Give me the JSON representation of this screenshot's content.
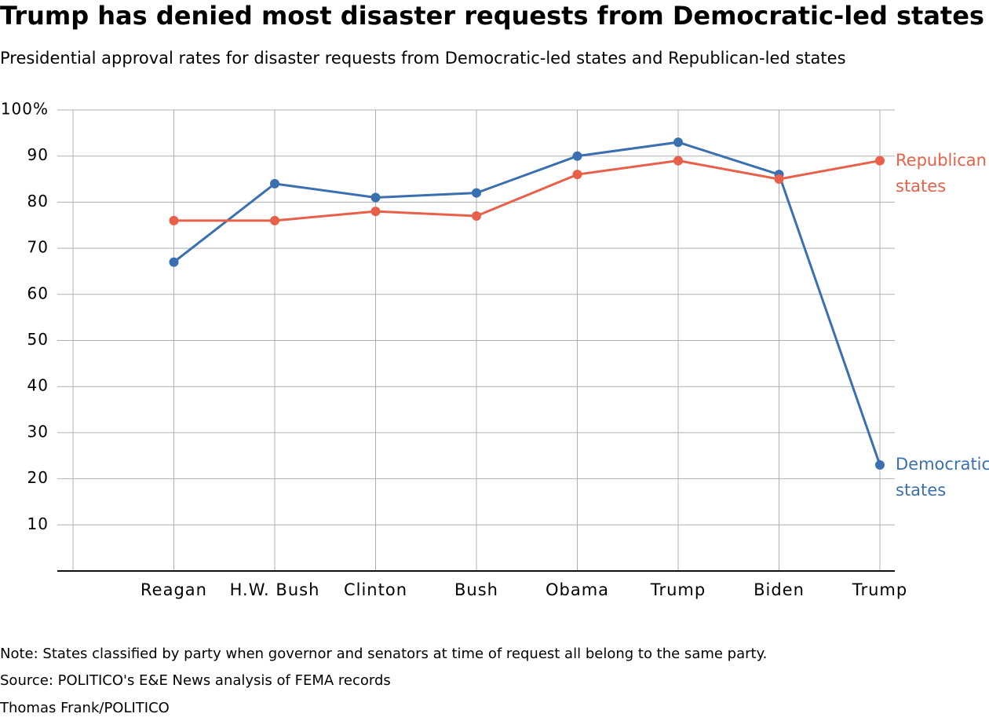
{
  "chart_data": {
    "type": "line",
    "title": "Trump has denied most disaster requests from Democratic-led states",
    "subtitle": "Presidential approval rates for disaster requests from Democratic-led states and Republican-led states",
    "categories": [
      null,
      "Reagan",
      "H.W. Bush",
      "Clinton",
      "Bush",
      "Obama",
      "Trump",
      "Biden",
      "Trump"
    ],
    "series": [
      {
        "name": "Democratic states",
        "color": "#3a6fb0",
        "values": [
          null,
          67,
          84,
          81,
          82,
          90,
          93,
          86,
          23
        ]
      },
      {
        "name": "Republican states",
        "color": "#e8604a",
        "values": [
          null,
          76,
          76,
          78,
          77,
          86,
          89,
          85,
          89
        ]
      }
    ],
    "ylim": [
      0,
      100
    ],
    "yticks": [
      10,
      20,
      30,
      40,
      50,
      60,
      70,
      80,
      90,
      {
        "value": 100,
        "label": "100%"
      }
    ],
    "grid": true,
    "notes": [
      "Note: States classified by party when governor and senators at time of request all belong to the same party.",
      "Source: POLITICO's E&E News analysis of FEMA records",
      "Thomas Frank/POLITICO"
    ]
  }
}
